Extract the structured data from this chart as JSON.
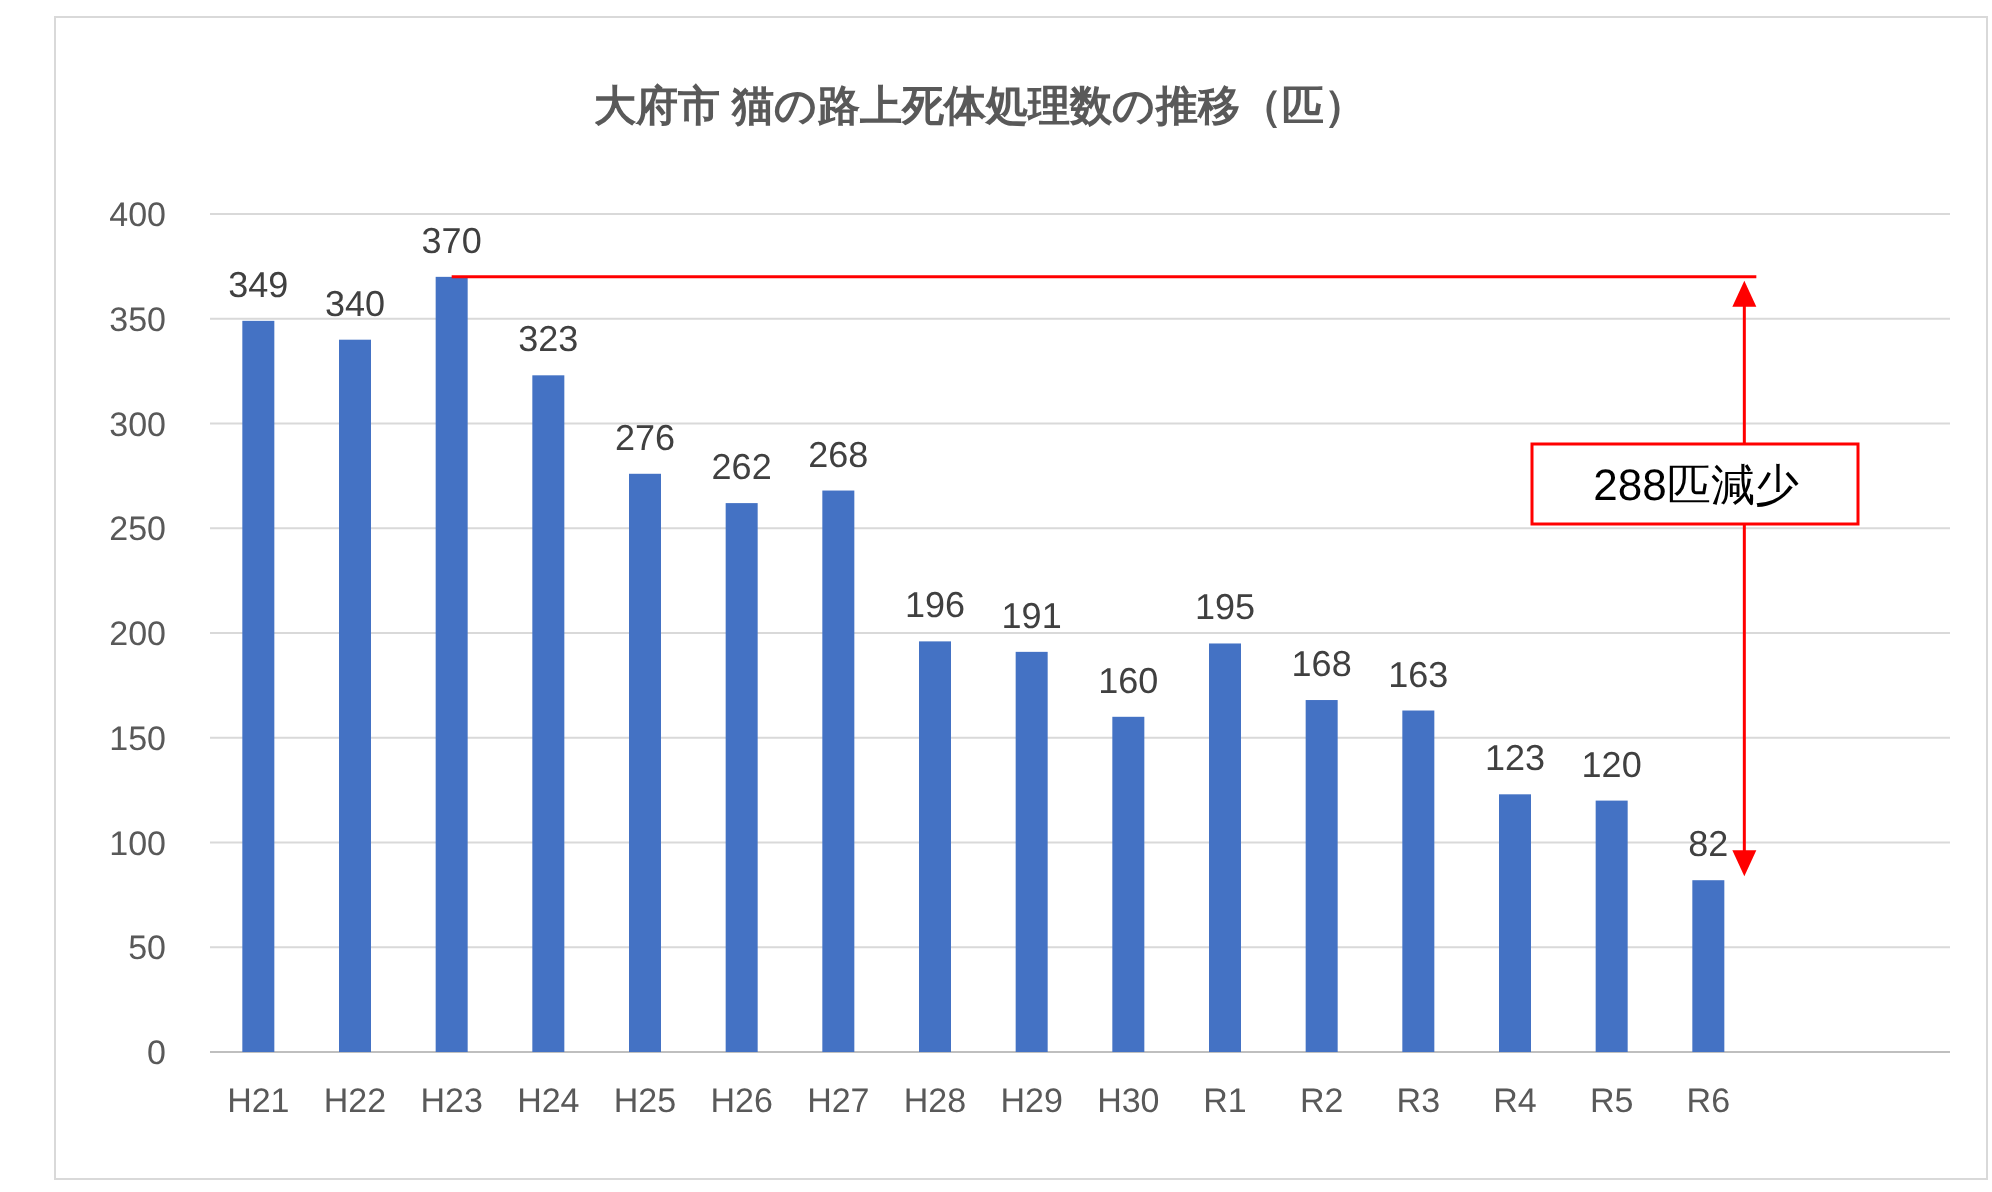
{
  "chart_data": {
    "type": "bar",
    "title": "大府市 猫の路上死体処理数の推移（匹）",
    "categories": [
      "H21",
      "H22",
      "H23",
      "H24",
      "H25",
      "H26",
      "H27",
      "H28",
      "H29",
      "H30",
      "R1",
      "R2",
      "R3",
      "R4",
      "R5",
      "R6",
      null,
      null
    ],
    "values": [
      349,
      340,
      370,
      323,
      276,
      262,
      268,
      196,
      191,
      160,
      195,
      168,
      163,
      123,
      120,
      82,
      null,
      null
    ],
    "color": "#4472c4",
    "ylim": [
      0,
      400
    ],
    "yticks": [
      0,
      50,
      100,
      150,
      200,
      250,
      300,
      350,
      400
    ],
    "grid": "y",
    "data_labels": true,
    "ref_lines": [
      {
        "axis": "y",
        "value": 370,
        "color": "#ff0000"
      }
    ],
    "annotations": [
      "288匹減少"
    ]
  }
}
